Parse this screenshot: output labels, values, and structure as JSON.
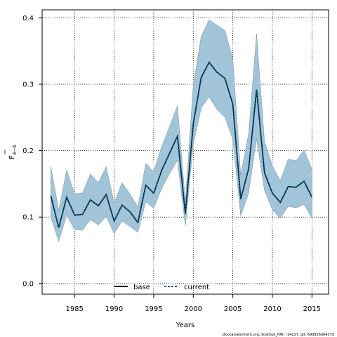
{
  "chart_data": {
    "type": "line",
    "title": "",
    "xlabel": "Years",
    "ylabel_main": "F",
    "ylabel_sub": "4−6",
    "xlim": [
      1980.9,
      2017.1
    ],
    "ylim": [
      -0.016,
      0.412
    ],
    "xticks": [
      1985,
      1990,
      1995,
      2000,
      2005,
      2010,
      2015
    ],
    "xtick_labels": [
      "1985",
      "1990",
      "1995",
      "2000",
      "2005",
      "2010",
      "2015"
    ],
    "yticks": [
      0.0,
      0.1,
      0.2,
      0.3,
      0.4
    ],
    "ytick_labels": [
      "0.0",
      "0.1",
      "0.2",
      "0.3",
      "0.4"
    ],
    "grid": true,
    "legend_position": "bottom-center",
    "x": [
      1982,
      1983,
      1984,
      1985,
      1986,
      1987,
      1988,
      1989,
      1990,
      1991,
      1992,
      1993,
      1994,
      1995,
      1996,
      1997,
      1998,
      1999,
      2000,
      2001,
      2002,
      2003,
      2004,
      2005,
      2006,
      2007,
      2008,
      2009,
      2010,
      2011,
      2012,
      2013,
      2014,
      2015
    ],
    "series": [
      {
        "name": "base",
        "style": "solid",
        "color": "#000000",
        "values": [
          0.132,
          0.084,
          0.13,
          0.103,
          0.104,
          0.126,
          0.117,
          0.134,
          0.094,
          0.118,
          0.108,
          0.092,
          0.148,
          0.136,
          0.17,
          0.196,
          0.222,
          0.105,
          0.24,
          0.31,
          0.333,
          0.318,
          0.309,
          0.27,
          0.127,
          0.173,
          0.292,
          0.167,
          0.136,
          0.122,
          0.146,
          0.145,
          0.154,
          0.13
        ]
      },
      {
        "name": "current",
        "style": "dashed",
        "color": "#005a8c",
        "values": [
          0.132,
          0.084,
          0.13,
          0.103,
          0.104,
          0.126,
          0.117,
          0.134,
          0.094,
          0.118,
          0.108,
          0.092,
          0.148,
          0.136,
          0.17,
          0.196,
          0.222,
          0.105,
          0.24,
          0.31,
          0.333,
          0.318,
          0.309,
          0.27,
          0.127,
          0.173,
          0.292,
          0.167,
          0.136,
          0.122,
          0.146,
          0.145,
          0.154,
          0.13
        ]
      }
    ],
    "band": {
      "color": "#a2c4d8",
      "lower": [
        0.1,
        0.063,
        0.103,
        0.081,
        0.08,
        0.096,
        0.088,
        0.101,
        0.075,
        0.094,
        0.086,
        0.077,
        0.123,
        0.113,
        0.143,
        0.165,
        0.186,
        0.087,
        0.21,
        0.264,
        0.281,
        0.262,
        0.25,
        0.217,
        0.102,
        0.136,
        0.218,
        0.14,
        0.111,
        0.098,
        0.116,
        0.114,
        0.119,
        0.098
      ],
      "upper": [
        0.176,
        0.11,
        0.171,
        0.135,
        0.136,
        0.165,
        0.152,
        0.176,
        0.121,
        0.152,
        0.135,
        0.115,
        0.181,
        0.168,
        0.206,
        0.236,
        0.268,
        0.124,
        0.298,
        0.372,
        0.397,
        0.389,
        0.381,
        0.338,
        0.163,
        0.226,
        0.376,
        0.214,
        0.177,
        0.155,
        0.187,
        0.185,
        0.201,
        0.172
      ]
    }
  },
  "footer": "stockassessment.org, Scallops_NW, r14217, git: 69d926d0437d"
}
